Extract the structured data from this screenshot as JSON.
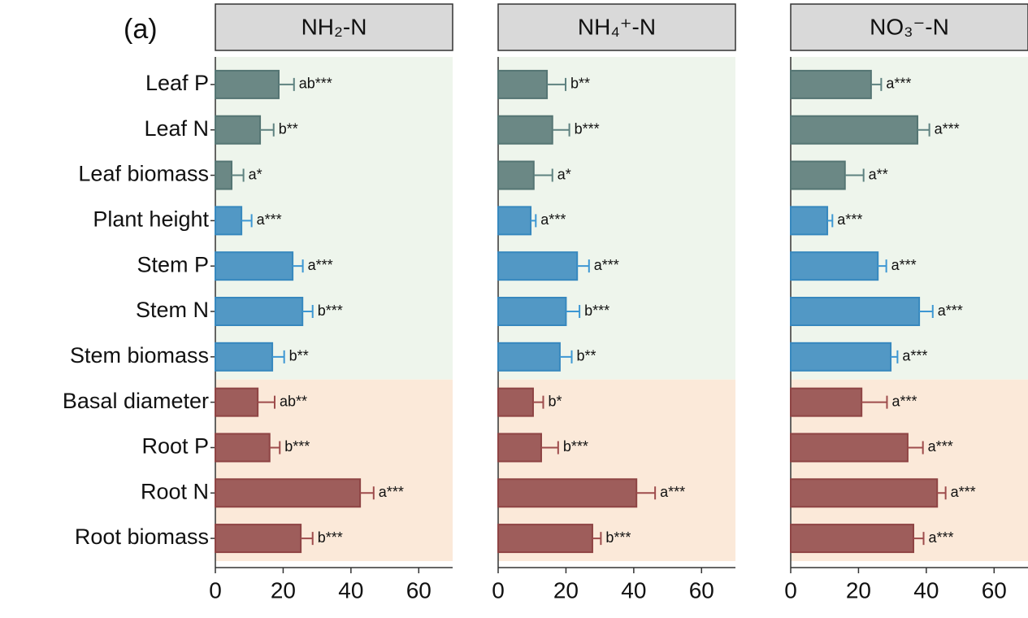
{
  "panel_label": "(a)",
  "chart_data": [
    {
      "type": "bar",
      "title": "NH₂-N",
      "categories": [
        "Leaf P",
        "Leaf N",
        "Leaf biomass",
        "Plant height",
        "Stem P",
        "Stem N",
        "Stem biomass",
        "Basal diameter",
        "Root P",
        "Root N",
        "Root biomass"
      ],
      "colors": [
        "#5e8280",
        "#5e8280",
        "#5e8280",
        "#3d97d3",
        "#3d97d3",
        "#3d97d3",
        "#3d97d3",
        "#9e4c4c",
        "#9e4c4c",
        "#9e4c4c",
        "#9e4c4c"
      ],
      "values": [
        18.7,
        13.2,
        4.8,
        7.7,
        22.8,
        25.7,
        16.8,
        12.5,
        16,
        42.7,
        25.2
      ],
      "errors": [
        4.5,
        4,
        3.5,
        3,
        3,
        3,
        3.5,
        5,
        3,
        4,
        3.5
      ],
      "annotations": [
        "ab***",
        "b**",
        "a*",
        "a***",
        "a***",
        "b***",
        "b**",
        "ab**",
        "b***",
        "a***",
        "b***"
      ],
      "xlim": [
        0,
        70
      ],
      "xticks": [
        0,
        20,
        40,
        60
      ]
    },
    {
      "type": "bar",
      "title": "NH₄⁺-N",
      "values": [
        14.4,
        16,
        10.5,
        9.6,
        23.3,
        20,
        18.2,
        10.3,
        12.7,
        40.8,
        27.8
      ],
      "errors": [
        5.5,
        5,
        5.5,
        1.5,
        3.5,
        4,
        3.5,
        3,
        5,
        5.5,
        2.5
      ],
      "annotations": [
        "b**",
        "b***",
        "a*",
        "a***",
        "a***",
        "b***",
        "b**",
        "b*",
        "b***",
        "a***",
        "b***"
      ],
      "xlim": [
        0,
        70
      ],
      "xticks": [
        0,
        20,
        40,
        60
      ]
    },
    {
      "type": "bar",
      "title": "NO₃⁻-N",
      "values": [
        23.7,
        37.4,
        16,
        10.8,
        25.7,
        37.9,
        29.5,
        20.9,
        34.5,
        43.2,
        36.2
      ],
      "errors": [
        3,
        3.5,
        5.5,
        1.5,
        2.5,
        4,
        2,
        7.5,
        4.5,
        2.5,
        3
      ],
      "annotations": [
        "a***",
        "a***",
        "a**",
        "a***",
        "a***",
        "a***",
        "a***",
        "a***",
        "a***",
        "a***",
        "a***"
      ],
      "xlim": [
        0,
        70
      ],
      "xticks": [
        0,
        20,
        40,
        60
      ]
    }
  ]
}
